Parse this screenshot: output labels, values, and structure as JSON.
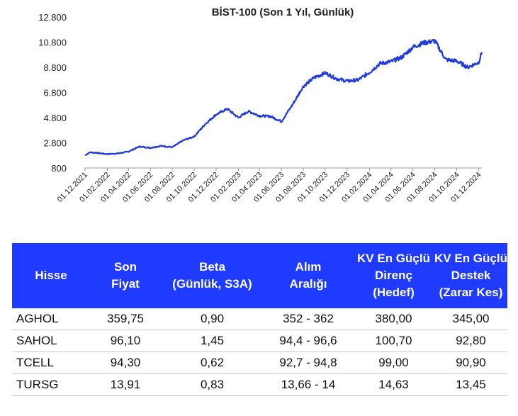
{
  "chart_data": {
    "type": "line",
    "title": "BİST-100 (Son 1 Yıl, Günlük)",
    "xlabel": "",
    "ylabel": "",
    "ylim": [
      800,
      12800
    ],
    "yticks": [
      "800",
      "2.800",
      "4.800",
      "6.800",
      "8.800",
      "10.800",
      "12.800"
    ],
    "ytick_values": [
      800,
      2800,
      4800,
      6800,
      8800,
      10800,
      12800
    ],
    "xticks": [
      "01.12.2021",
      "01.02.2022",
      "01.04.2022",
      "01.06.2022",
      "01.08.2022",
      "01.10.2022",
      "01.12.2022",
      "01.02.2023",
      "01.04.2023",
      "01.06.2023",
      "01.08.2023",
      "01.10.2023",
      "01.12.2023",
      "01.02.2024",
      "01.04.2024",
      "01.06.2024",
      "01.08.2024",
      "01.10.2024",
      "01.12.2024"
    ],
    "grid": false,
    "line_color": "#1f3bdb",
    "series": [
      {
        "x": [
          "01.12.2021",
          "15.12.2021",
          "01.01.2022",
          "01.02.2022",
          "01.03.2022",
          "01.04.2022",
          "01.05.2022",
          "01.06.2022",
          "01.07.2022",
          "01.08.2022",
          "01.09.2022",
          "01.10.2022",
          "01.11.2022",
          "01.12.2022",
          "01.01.2023",
          "01.02.2023",
          "01.03.2023",
          "01.04.2023",
          "01.05.2023",
          "01.06.2023",
          "01.07.2023",
          "01.08.2023",
          "01.09.2023",
          "01.10.2023",
          "01.11.2023",
          "01.12.2023",
          "01.01.2024",
          "01.02.2024",
          "01.03.2024",
          "01.04.2024",
          "01.05.2024",
          "01.06.2024",
          "01.07.2024",
          "01.08.2024",
          "01.09.2024",
          "01.10.2024",
          "01.11.2024",
          "01.12.2024",
          "10.12.2024"
        ],
        "values": [
          1800,
          2050,
          2000,
          1900,
          1950,
          2100,
          2500,
          2400,
          2550,
          2450,
          3000,
          3300,
          4300,
          5050,
          5500,
          4800,
          5300,
          4950,
          4900,
          4500,
          5800,
          7300,
          8000,
          8350,
          7900,
          7700,
          7800,
          8400,
          9100,
          9250,
          9600,
          10400,
          10750,
          10900,
          9400,
          9300,
          8800,
          9200,
          10000
        ]
      }
    ]
  },
  "table": {
    "headers": [
      "Hisse",
      "Son\nFiyat",
      "Beta\n(Günlük, S3A)",
      "Alım\nAralığı",
      "KV En Güçlü\nDirenç\n(Hedef)",
      "KV En Güçlü\nDestek\n(Zarar Kes)"
    ],
    "header_color": "#1f3bff",
    "rows": [
      [
        "AGHOL",
        "359,75",
        "0,90",
        "352 - 362",
        "380,00",
        "345,00"
      ],
      [
        "SAHOL",
        "96,10",
        "1,45",
        "94,4 - 96,6",
        "100,70",
        "92,80"
      ],
      [
        "TCELL",
        "94,30",
        "0,62",
        "92,7 - 94,8",
        "99,00",
        "90,90"
      ],
      [
        "TURSG",
        "13,91",
        "0,83",
        "13,66 - 14",
        "14,63",
        "13,45"
      ]
    ]
  }
}
